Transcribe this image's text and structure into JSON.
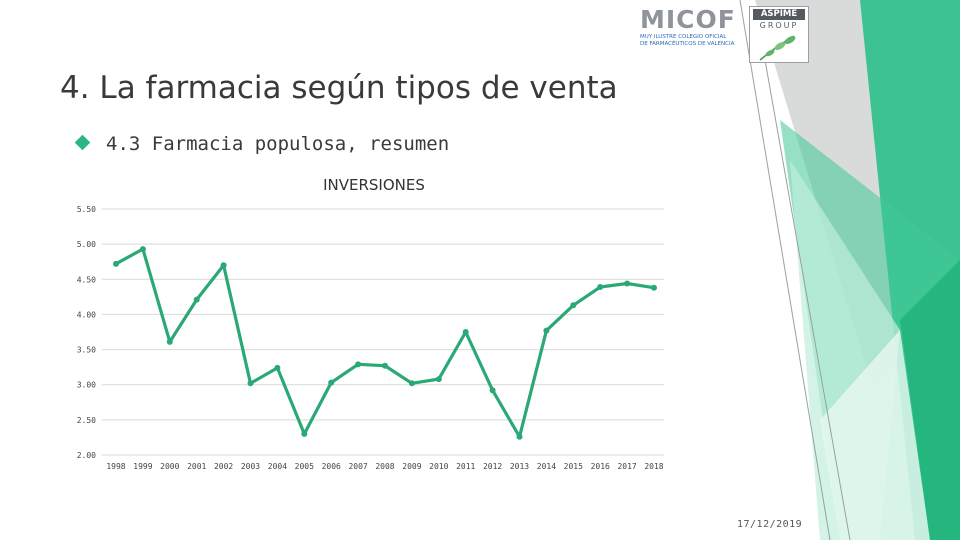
{
  "slide": {
    "title": "4. La farmacia según tipos de venta",
    "subtitle": "4.3 Farmacia populosa, resumen",
    "date": "17/12/2019"
  },
  "logos": {
    "micof": {
      "word": "MICOF",
      "line1": "MUY ILUSTRE COLEGIO OFICIAL",
      "line2": "DE FARMACÉUTICOS DE VALENCIA"
    },
    "aspime": {
      "word": "ASPIME",
      "line": "GROUP"
    }
  },
  "colors": {
    "accent": "#2bb783",
    "series": "#2aa876",
    "grid": "#d9d9d9",
    "bullet": "#2bb783"
  },
  "chart_data": {
    "type": "line",
    "title": "INVERSIONES",
    "categories": [
      "1998",
      "1999",
      "2000",
      "2001",
      "2002",
      "2003",
      "2004",
      "2005",
      "2006",
      "2007",
      "2008",
      "2009",
      "2010",
      "2011",
      "2012",
      "2013",
      "2014",
      "2015",
      "2016",
      "2017",
      "2018"
    ],
    "series": [
      {
        "values": [
          4.72,
          4.93,
          3.61,
          4.21,
          4.7,
          3.02,
          3.24,
          2.3,
          3.03,
          3.29,
          3.27,
          3.02,
          3.08,
          3.75,
          2.92,
          2.26,
          3.77,
          4.13,
          4.39,
          4.44,
          4.38
        ]
      }
    ],
    "yticks": [
      "5.50",
      "5.00",
      "4.50",
      "4.00",
      "3.50",
      "3.00",
      "2.50",
      "2.00"
    ],
    "ylim": [
      2.0,
      5.5
    ],
    "grid": true,
    "legend": "none"
  }
}
